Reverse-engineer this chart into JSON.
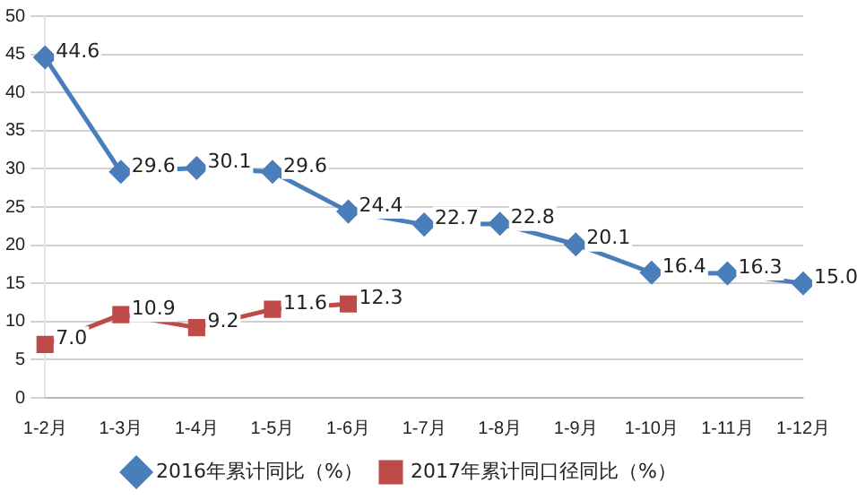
{
  "chart_data": {
    "type": "line",
    "categories": [
      "1-2月",
      "1-3月",
      "1-4月",
      "1-5月",
      "1-6月",
      "1-7月",
      "1-8月",
      "1-9月",
      "1-10月",
      "1-11月",
      "1-12月"
    ],
    "series": [
      {
        "name": "2016年累计同比（%）",
        "color": "#4a7ebb",
        "marker": "diamond",
        "values": [
          44.6,
          29.6,
          30.1,
          29.6,
          24.4,
          22.7,
          22.8,
          20.1,
          16.4,
          16.3,
          15.0
        ],
        "value_labels": [
          "44.6",
          "29.6",
          "30.1",
          "29.6",
          "24.4",
          "22.7",
          "22.8",
          "20.1",
          "16.4",
          "16.3",
          "15.0"
        ]
      },
      {
        "name": "2017年累计同口径同比（%）",
        "color": "#be4b48",
        "marker": "square",
        "values": [
          7.0,
          10.9,
          9.2,
          11.6,
          12.3,
          null,
          null,
          null,
          null,
          null,
          null
        ],
        "value_labels": [
          "7.0",
          "10.9",
          "9.2",
          "11.6",
          "12.3",
          null,
          null,
          null,
          null,
          null,
          null
        ]
      }
    ],
    "ylim": [
      0,
      50
    ],
    "yticks": [
      0,
      5,
      10,
      15,
      20,
      25,
      30,
      35,
      40,
      45,
      50
    ],
    "grid": "y",
    "legend": "bottom",
    "line_style": "solid"
  }
}
